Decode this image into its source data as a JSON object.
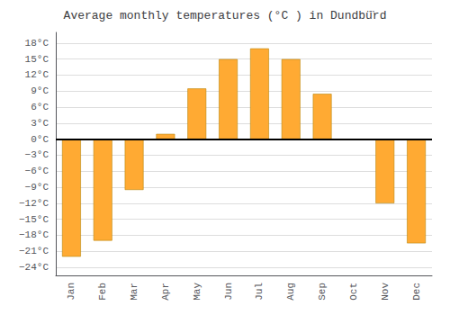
{
  "chart_data": {
    "type": "bar",
    "title": "Average monthly temperatures (°C ) in Dundbü̈rd",
    "categories": [
      "Jan",
      "Feb",
      "Mar",
      "Apr",
      "May",
      "Jun",
      "Jul",
      "Aug",
      "Sep",
      "Oct",
      "Nov",
      "Dec"
    ],
    "values": [
      -22,
      -19,
      -9.5,
      1,
      9.5,
      15,
      17,
      15,
      8.5,
      0,
      -12,
      -19.5
    ],
    "color": "#FFAA33",
    "ylim": [
      -25.5,
      20
    ],
    "yticks": [
      {
        "value": -24,
        "label": "−24°C"
      },
      {
        "value": -21,
        "label": "−21°C"
      },
      {
        "value": -18,
        "label": "−18°C"
      },
      {
        "value": -15,
        "label": "−15°C"
      },
      {
        "value": -12,
        "label": "−12°C"
      },
      {
        "value": -9,
        "label": "−9°C"
      },
      {
        "value": -6,
        "label": "−6°C"
      },
      {
        "value": -3,
        "label": "−3°C"
      },
      {
        "value": 0,
        "label": "0°C"
      },
      {
        "value": 3,
        "label": "3°C"
      },
      {
        "value": 6,
        "label": "6°C"
      },
      {
        "value": 9,
        "label": "9°C"
      },
      {
        "value": 12,
        "label": "12°C"
      },
      {
        "value": 15,
        "label": "15°C"
      },
      {
        "value": 18,
        "label": "18°C"
      }
    ],
    "grid": true
  }
}
